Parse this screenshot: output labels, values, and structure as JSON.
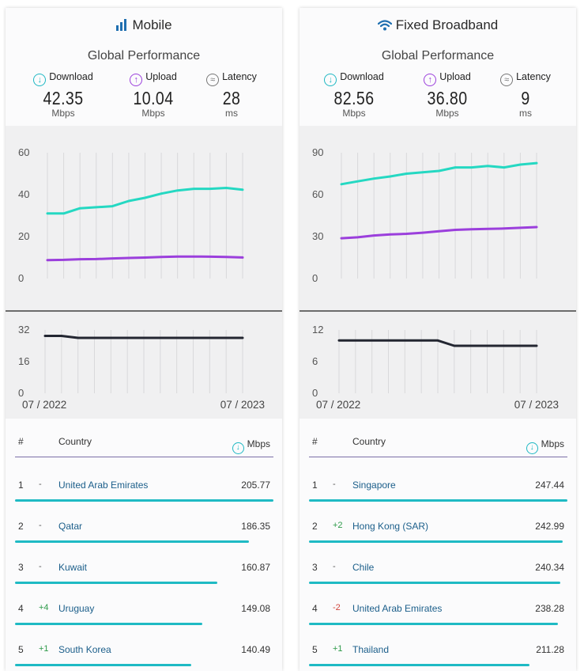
{
  "colors": {
    "download": "#25d8c2",
    "upload": "#9b3fdc",
    "latency": "#232631",
    "accent": "#1fb8c3"
  },
  "panels": [
    {
      "title": "Mobile",
      "icon": "signal-bars-icon",
      "subtitle": "Global Performance",
      "metrics": [
        {
          "label": "Download",
          "value": "42.35",
          "unit": "Mbps",
          "icon": "download-icon"
        },
        {
          "label": "Upload",
          "value": "10.04",
          "unit": "Mbps",
          "icon": "upload-icon"
        },
        {
          "label": "Latency",
          "value": "28",
          "unit": "ms",
          "icon": "latency-icon"
        }
      ],
      "date_start": "07 / 2022",
      "date_end": "07 / 2023",
      "table_header": {
        "num": "#",
        "country": "Country",
        "unit": "Mbps"
      },
      "rows": [
        {
          "rank": "1",
          "change": "-",
          "country": "United Arab Emirates",
          "value": "205.77",
          "bar": 1.0
        },
        {
          "rank": "2",
          "change": "-",
          "country": "Qatar",
          "value": "186.35",
          "bar": 0.905
        },
        {
          "rank": "3",
          "change": "-",
          "country": "Kuwait",
          "value": "160.87",
          "bar": 0.782
        },
        {
          "rank": "4",
          "change": "+4",
          "country": "Uruguay",
          "value": "149.08",
          "bar": 0.724
        },
        {
          "rank": "5",
          "change": "+1",
          "country": "South Korea",
          "value": "140.49",
          "bar": 0.683
        }
      ]
    },
    {
      "title": "Fixed Broadband",
      "icon": "wifi-icon",
      "subtitle": "Global Performance",
      "metrics": [
        {
          "label": "Download",
          "value": "82.56",
          "unit": "Mbps",
          "icon": "download-icon"
        },
        {
          "label": "Upload",
          "value": "36.80",
          "unit": "Mbps",
          "icon": "upload-icon"
        },
        {
          "label": "Latency",
          "value": "9",
          "unit": "ms",
          "icon": "latency-icon"
        }
      ],
      "date_start": "07 / 2022",
      "date_end": "07 / 2023",
      "table_header": {
        "num": "#",
        "country": "Country",
        "unit": "Mbps"
      },
      "rows": [
        {
          "rank": "1",
          "change": "-",
          "country": "Singapore",
          "value": "247.44",
          "bar": 1.0
        },
        {
          "rank": "2",
          "change": "+2",
          "country": "Hong Kong (SAR)",
          "value": "242.99",
          "bar": 0.982
        },
        {
          "rank": "3",
          "change": "-",
          "country": "Chile",
          "value": "240.34",
          "bar": 0.971
        },
        {
          "rank": "4",
          "change": "-2",
          "country": "United Arab Emirates",
          "value": "238.28",
          "bar": 0.963
        },
        {
          "rank": "5",
          "change": "+1",
          "country": "Thailand",
          "value": "211.28",
          "bar": 0.854
        }
      ]
    }
  ],
  "chart_data": [
    {
      "type": "line",
      "x": [
        "07/2022",
        "08/2022",
        "09/2022",
        "10/2022",
        "11/2022",
        "12/2022",
        "01/2023",
        "02/2023",
        "03/2023",
        "04/2023",
        "05/2023",
        "06/2023",
        "07/2023"
      ],
      "ylim": [
        0,
        60
      ],
      "yticks": [
        "0",
        "20",
        "40",
        "60"
      ],
      "series": [
        {
          "values": [
            31,
            31,
            33.5,
            34,
            34.5,
            37,
            38.5,
            40.5,
            42,
            42.8,
            42.8,
            43.2,
            42.35
          ]
        },
        {
          "values": [
            8.8,
            8.9,
            9.2,
            9.3,
            9.6,
            9.8,
            10.0,
            10.3,
            10.5,
            10.5,
            10.4,
            10.3,
            10.04
          ]
        }
      ]
    },
    {
      "type": "line",
      "x": [
        "07/2022",
        "08/2022",
        "09/2022",
        "10/2022",
        "11/2022",
        "12/2022",
        "01/2023",
        "02/2023",
        "03/2023",
        "04/2023",
        "05/2023",
        "06/2023",
        "07/2023"
      ],
      "ylim": [
        0,
        32
      ],
      "yticks": [
        "0",
        "16",
        "32"
      ],
      "series": [
        {
          "values": [
            29,
            29,
            28,
            28,
            28,
            28,
            28,
            28,
            28,
            28,
            28,
            28,
            28
          ]
        }
      ]
    },
    {
      "type": "line",
      "x": [
        "07/2022",
        "08/2022",
        "09/2022",
        "10/2022",
        "11/2022",
        "12/2022",
        "01/2023",
        "02/2023",
        "03/2023",
        "04/2023",
        "05/2023",
        "06/2023",
        "07/2023"
      ],
      "ylim": [
        0,
        90
      ],
      "yticks": [
        "0",
        "30",
        "60",
        "90"
      ],
      "series": [
        {
          "values": [
            67.5,
            69.5,
            71.5,
            73,
            75,
            76,
            77,
            79.5,
            79.5,
            80.5,
            79.5,
            81.5,
            82.56
          ]
        },
        {
          "values": [
            28.8,
            29.5,
            30.8,
            31.5,
            32,
            32.8,
            33.8,
            34.8,
            35.2,
            35.5,
            35.8,
            36.3,
            36.8
          ]
        }
      ]
    },
    {
      "type": "line",
      "x": [
        "07/2022",
        "08/2022",
        "09/2022",
        "10/2022",
        "11/2022",
        "12/2022",
        "01/2023",
        "02/2023",
        "03/2023",
        "04/2023",
        "05/2023",
        "06/2023",
        "07/2023"
      ],
      "ylim": [
        0,
        12
      ],
      "yticks": [
        "0",
        "6",
        "12"
      ],
      "series": [
        {
          "values": [
            10,
            10,
            10,
            10,
            10,
            10,
            10,
            9,
            9,
            9,
            9,
            9,
            9
          ]
        }
      ]
    }
  ]
}
